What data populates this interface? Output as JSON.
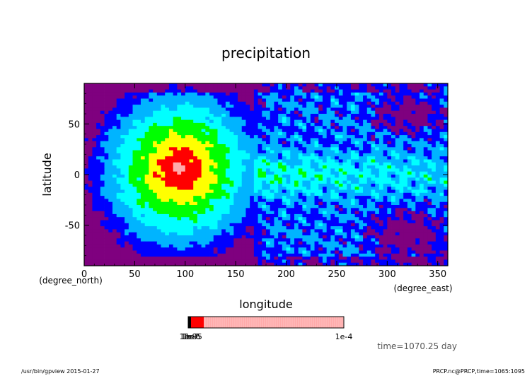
{
  "chart_data": {
    "type": "heatmap",
    "title": "precipitation",
    "xlabel": "longitude",
    "ylabel": "latitude",
    "x_units": "(degree_east)",
    "y_units": "(degree_north)",
    "xlim": [
      0,
      360
    ],
    "ylim": [
      -90,
      90
    ],
    "x_ticks": [
      0,
      50,
      100,
      150,
      200,
      250,
      300,
      350
    ],
    "y_ticks": [
      -50,
      0,
      50
    ],
    "x_tick_labels": [
      "0",
      "50",
      "100",
      "150",
      "200",
      "250",
      "300",
      "350"
    ],
    "y_tick_labels": [
      "-50",
      "0",
      "50"
    ],
    "levels_colors": [
      "#7f007f",
      "#0000ff",
      "#00b4ff",
      "#00ffff",
      "#00ff00",
      "#ffff00",
      "#ff0000",
      "#ffaaaa"
    ],
    "features": [
      {
        "kind": "storm",
        "lon": 95,
        "lat": 5,
        "rx": 80,
        "ry": 80,
        "peak_level": 7
      },
      {
        "kind": "band",
        "lon_start": 170,
        "lon_end": 360,
        "lat": 0,
        "width": 25,
        "level": 4
      },
      {
        "kind": "dry",
        "lon": 320,
        "lat": 60,
        "rx": 35,
        "ry": 20,
        "level": 0
      },
      {
        "kind": "dry",
        "lon": 320,
        "lat": -60,
        "rx": 40,
        "ry": 25,
        "level": 0
      }
    ],
    "colorbar": {
      "labels": [
        "1e-8",
        "1e-7",
        "1e-6",
        "1e-5",
        "1e-4"
      ],
      "end_label": "1e-4",
      "colors": [
        "#000000",
        "#ff0000",
        "#ffaaaa"
      ]
    }
  },
  "annotation": {
    "time": "time=1070.25 day"
  },
  "footer": {
    "left": "/usr/bin/gpview  2015-01-27",
    "right": "PRCP.nc@PRCP,time=1065:1095"
  }
}
